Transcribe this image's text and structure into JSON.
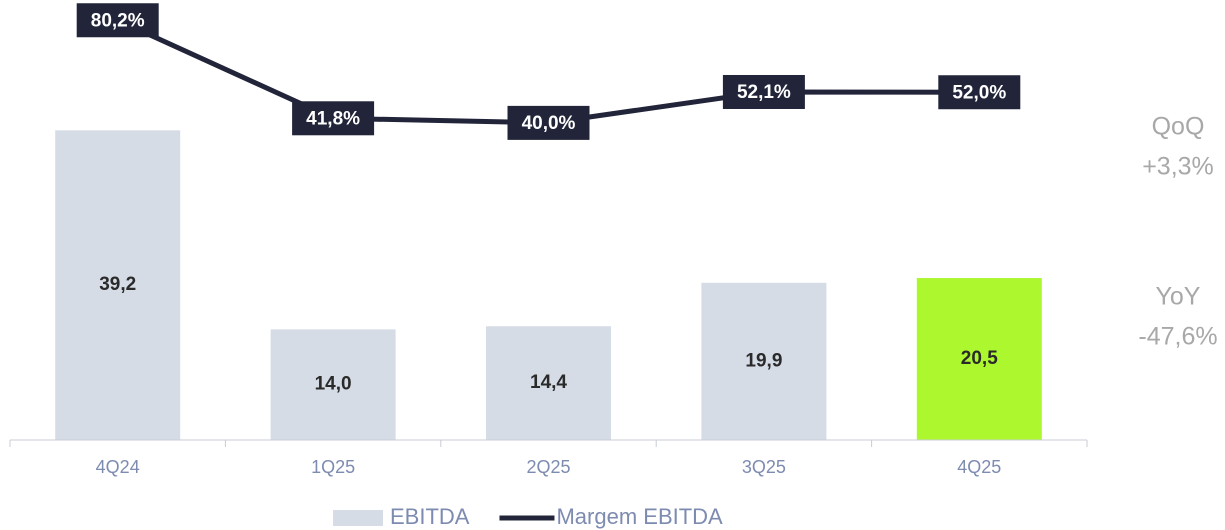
{
  "chart_data": {
    "type": "bar",
    "categories": [
      "4Q24",
      "1Q25",
      "2Q25",
      "3Q25",
      "4Q25"
    ],
    "series": [
      {
        "name": "EBITDA",
        "type": "bar",
        "color": "#d6dce6",
        "colors": [
          "#d6dce6",
          "#d6dce6",
          "#d6dce6",
          "#d6dce6",
          "#adf72f"
        ],
        "values": [
          39.2,
          14.0,
          14.4,
          19.9,
          20.5
        ],
        "value_labels": [
          "39,2",
          "14,0",
          "14,4",
          "19,9",
          "20,5"
        ]
      },
      {
        "name": "Margem EBITDA",
        "type": "line",
        "axis": "y2",
        "color": "#22253a",
        "values": [
          80.2,
          41.8,
          40.0,
          52.1,
          52.0
        ],
        "value_labels": [
          "80,2%",
          "41,8%",
          "40,0%",
          "52,1%",
          "52,0%"
        ]
      }
    ],
    "ylim": [
      0,
      50
    ],
    "y2lim": [
      0,
      85
    ],
    "annotations": [
      "QoQ",
      "+3,3%",
      "YoY",
      "-47,6%"
    ]
  }
}
